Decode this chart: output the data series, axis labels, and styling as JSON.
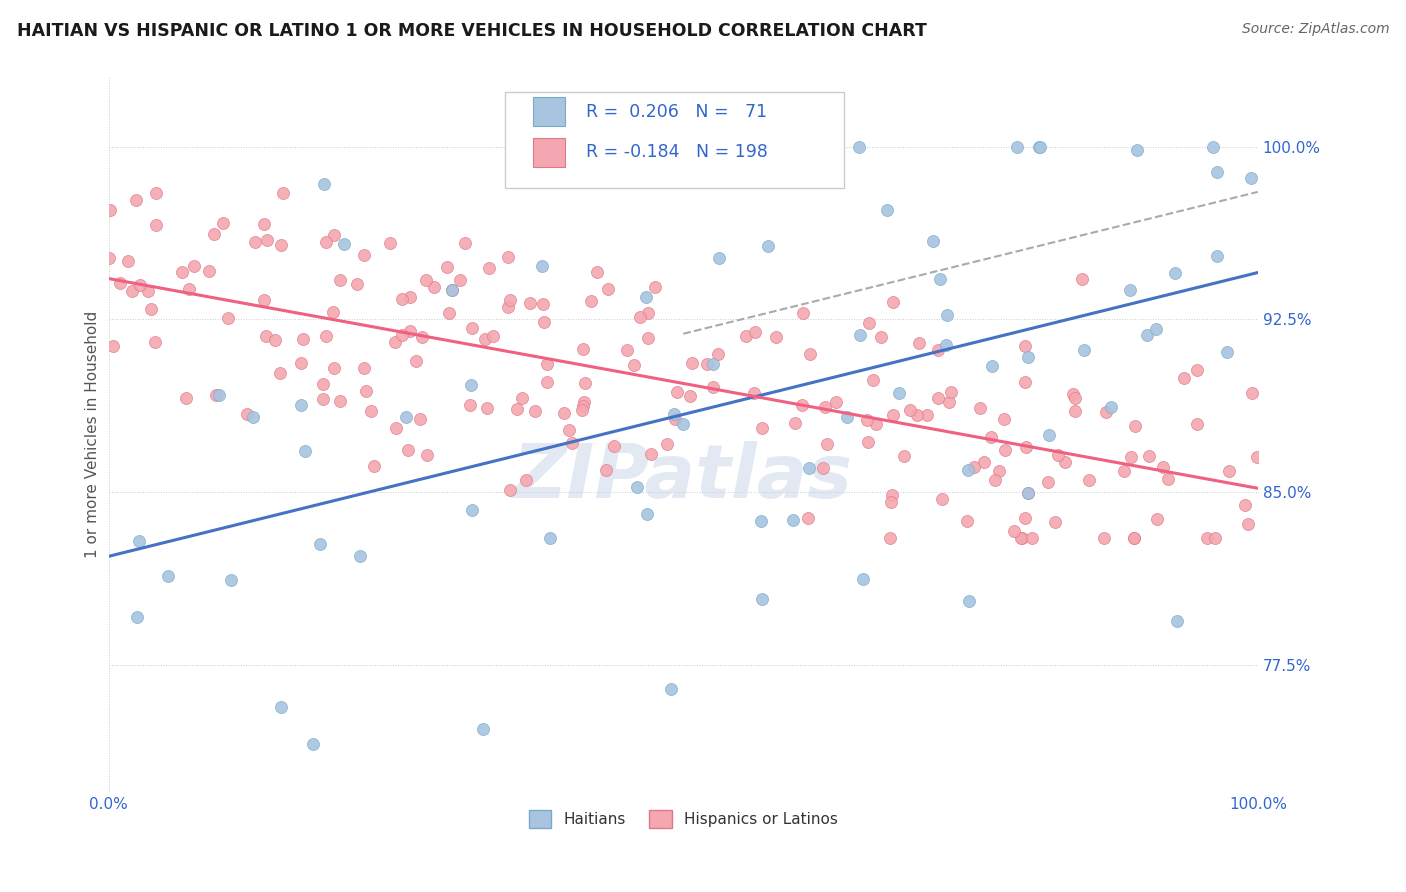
{
  "title": "HAITIAN VS HISPANIC OR LATINO 1 OR MORE VEHICLES IN HOUSEHOLD CORRELATION CHART",
  "source": "Source: ZipAtlas.com",
  "ylabel": "1 or more Vehicles in Household",
  "y_ticks": [
    77.5,
    85.0,
    92.5,
    100.0
  ],
  "x_range": [
    0.0,
    100.0
  ],
  "y_range": [
    72.0,
    103.0
  ],
  "blue_color": "#a8c4e0",
  "pink_color": "#f4a7b0",
  "blue_edge_color": "#7aaac8",
  "pink_edge_color": "#e07888",
  "blue_line_color": "#4472c4",
  "pink_line_color": "#f06080",
  "dash_color": "#aaaaaa",
  "watermark": "ZIPatlas",
  "legend_label1": "Haitians",
  "legend_label2": "Hispanics or Latinos",
  "R1": 0.206,
  "N1": 71,
  "R2": -0.184,
  "N2": 198,
  "blue_intercept": 79.5,
  "blue_slope": 0.165,
  "pink_intercept": 93.8,
  "pink_slope": -0.085
}
